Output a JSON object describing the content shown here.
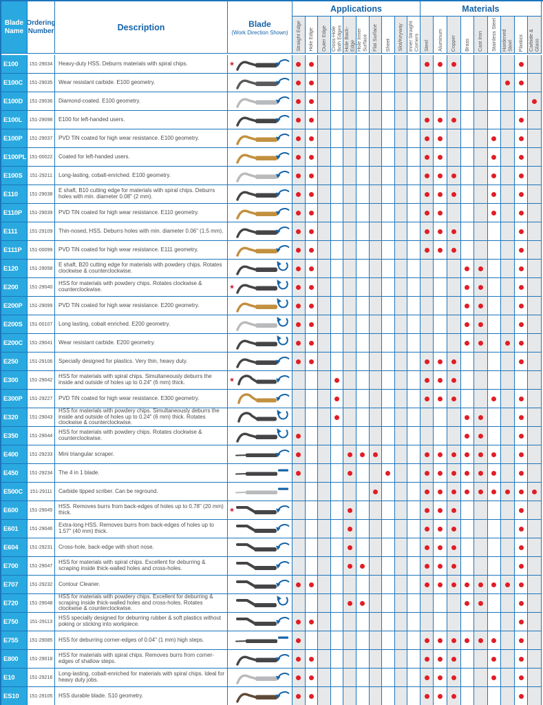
{
  "colors": {
    "header_cyan": "#29a9e0",
    "grid_blue": "#1b75bc",
    "title_blue": "#1464a8",
    "dot_red": "#e01e26",
    "column_shade_gray": "#e7e8e9",
    "body_text": "#4b4b4d",
    "star_red": "#cf2030",
    "blade_dark": "#454548",
    "blade_gold": "#c2903f",
    "blade_silver": "#b9babc",
    "blade_brown": "#5f4a38"
  },
  "icons": {
    "star": "★",
    "work_direction_arc": "curved arrow",
    "work_direction_rotation": "circular arrow (clockwise & counterclockwise)",
    "work_direction_dash": "straight stroke"
  },
  "table": {
    "headers": {
      "blade_name": "Blade Name",
      "ordering_number": "Ordering Number",
      "description": "Description",
      "blade_title": "Blade",
      "blade_subtitle": "(Work Direction Shown)",
      "applications_title": "Applications",
      "materials_title": "Materials",
      "application_columns": [
        "Straight Edge",
        "Hole Edge",
        "Outer Edge",
        "Cross-Hole Both Edges",
        "Hole Back-Edge",
        "Hole Inner Surface",
        "Flat Surface",
        "Sheet",
        "Slot/Keyway",
        "Inner Straight Corners"
      ],
      "material_columns": [
        "Steel",
        "Aluminum",
        "Copper",
        "Brass",
        "Cast Iron",
        "Stainless Steel",
        "Hardened Steel",
        "Plastics",
        "Carbide & Glass"
      ]
    },
    "rows": [
      {
        "name": "E100",
        "order": "151-29034",
        "desc": "Heavy-duty HSS. Deburrs materials with spiral chips.",
        "star": true,
        "shape": "curve",
        "blade_color": "#454548",
        "direction": "arc",
        "applications": [
          "Straight Edge",
          "Hole Edge"
        ],
        "materials": [
          "Steel",
          "Aluminum",
          "Copper",
          "Plastics"
        ]
      },
      {
        "name": "E100C",
        "order": "151-29035",
        "desc": "Wear resistant carbide. E100 geometry.",
        "star": false,
        "shape": "curve",
        "blade_color": "#5a5a5d",
        "direction": "arc",
        "applications": [
          "Straight Edge",
          "Hole Edge"
        ],
        "materials": [
          "Hardened Steel",
          "Plastics"
        ]
      },
      {
        "name": "E100D",
        "order": "151-29036",
        "desc": "Diamond-coated. E100 geometry.",
        "star": false,
        "shape": "curve",
        "blade_color": "#b9babc",
        "direction": "arc",
        "applications": [
          "Straight Edge",
          "Hole Edge"
        ],
        "materials": [
          "Carbide & Glass"
        ]
      },
      {
        "name": "E100L",
        "order": "151-29098",
        "desc": "E100 for left-handed users.",
        "star": false,
        "shape": "curve",
        "blade_color": "#454548",
        "direction": "arc",
        "applications": [
          "Straight Edge",
          "Hole Edge"
        ],
        "materials": [
          "Steel",
          "Aluminum",
          "Copper",
          "Plastics"
        ]
      },
      {
        "name": "E100P",
        "order": "151-29037",
        "desc": "PVD TiN coated for high wear resistance. E100 geometry.",
        "star": false,
        "shape": "curve",
        "blade_color": "#c2903f",
        "direction": "arc",
        "applications": [
          "Straight Edge",
          "Hole Edge"
        ],
        "materials": [
          "Steel",
          "Aluminum",
          "Stainless Steel",
          "Plastics"
        ]
      },
      {
        "name": "E100PL",
        "order": "151-00022",
        "desc": "Coated for left-handed users.",
        "star": false,
        "shape": "curve",
        "blade_color": "#c2903f",
        "direction": "arc",
        "applications": [
          "Straight Edge",
          "Hole Edge"
        ],
        "materials": [
          "Steel",
          "Aluminum",
          "Stainless Steel",
          "Plastics"
        ]
      },
      {
        "name": "E100S",
        "order": "151-29211",
        "desc": "Long-lasting, cobalt-enriched. E100 geometry.",
        "star": false,
        "shape": "curve",
        "blade_color": "#b9babc",
        "direction": "arc",
        "applications": [
          "Straight Edge",
          "Hole Edge"
        ],
        "materials": [
          "Steel",
          "Aluminum",
          "Copper",
          "Stainless Steel",
          "Plastics"
        ]
      },
      {
        "name": "E110",
        "order": "151-29038",
        "desc": "E shaft, B10 cutting edge for materials with spiral chips. Deburrs holes with min. diameter 0.08\" (2 mm).",
        "star": false,
        "shape": "curve",
        "blade_color": "#454548",
        "direction": "arc",
        "applications": [
          "Straight Edge",
          "Hole Edge"
        ],
        "materials": [
          "Steel",
          "Aluminum",
          "Copper",
          "Stainless Steel",
          "Plastics"
        ]
      },
      {
        "name": "E110P",
        "order": "151-29039",
        "desc": "PVD TiN coated for high wear resistance. E110 geometry.",
        "star": false,
        "shape": "curve",
        "blade_color": "#c2903f",
        "direction": "arc",
        "applications": [
          "Straight Edge",
          "Hole Edge"
        ],
        "materials": [
          "Steel",
          "Aluminum",
          "Stainless Steel",
          "Plastics"
        ]
      },
      {
        "name": "E111",
        "order": "151-29109",
        "desc": "Thin-nosed, HSS. Deburrs holes with min. diameter 0.06\" (1.5 mm).",
        "star": false,
        "shape": "curve",
        "blade_color": "#454548",
        "direction": "arc",
        "applications": [
          "Straight Edge",
          "Hole Edge"
        ],
        "materials": [
          "Steel",
          "Aluminum",
          "Copper",
          "Plastics"
        ]
      },
      {
        "name": "E111P",
        "order": "151-00099",
        "desc": "PVD TiN coated for high wear resistance. E111 geometry.",
        "star": false,
        "shape": "curve",
        "blade_color": "#c2903f",
        "direction": "arc",
        "applications": [
          "Straight Edge",
          "Hole Edge"
        ],
        "materials": [
          "Steel",
          "Aluminum",
          "Copper",
          "Plastics"
        ]
      },
      {
        "name": "E120",
        "order": "151-29058",
        "desc": "E shaft, B20 cutting edge for materials with powdery chips. Rotates clockwise & counterclockwise.",
        "star": false,
        "shape": "curve",
        "blade_color": "#454548",
        "direction": "circle",
        "applications": [
          "Straight Edge",
          "Hole Edge"
        ],
        "materials": [
          "Brass",
          "Cast Iron",
          "Plastics"
        ]
      },
      {
        "name": "E200",
        "order": "151-29040",
        "desc": "HSS for materials with powdery chips. Rotates clockwise & counterclockwise.",
        "star": true,
        "shape": "curve",
        "blade_color": "#454548",
        "direction": "circle",
        "applications": [
          "Straight Edge",
          "Hole Edge"
        ],
        "materials": [
          "Brass",
          "Cast Iron",
          "Plastics"
        ]
      },
      {
        "name": "E200P",
        "order": "151-29099",
        "desc": "PVD TiN coated for high wear resistance. E200 geometry.",
        "star": false,
        "shape": "curve",
        "blade_color": "#c2903f",
        "direction": "circle",
        "applications": [
          "Straight Edge",
          "Hole Edge"
        ],
        "materials": [
          "Brass",
          "Cast Iron",
          "Plastics"
        ]
      },
      {
        "name": "E200S",
        "order": "151-00107",
        "desc": "Long lasting, cobalt enriched. E200 geometry.",
        "star": false,
        "shape": "curve",
        "blade_color": "#b9babc",
        "direction": "circle",
        "applications": [
          "Straight Edge",
          "Hole Edge"
        ],
        "materials": [
          "Brass",
          "Cast Iron",
          "Plastics"
        ]
      },
      {
        "name": "E200C",
        "order": "151-29041",
        "desc": "Wear resistant carbide. E200 geometry.",
        "star": false,
        "shape": "curve",
        "blade_color": "#454548",
        "direction": "circle",
        "applications": [
          "Straight Edge",
          "Hole Edge"
        ],
        "materials": [
          "Brass",
          "Cast Iron",
          "Hardened Steel",
          "Plastics"
        ]
      },
      {
        "name": "E250",
        "order": "151-29106",
        "desc": "Specially designed for plastics. Very thin, heavy duty.",
        "star": false,
        "shape": "curve",
        "blade_color": "#454548",
        "direction": "arc",
        "applications": [
          "Straight Edge",
          "Hole Edge"
        ],
        "materials": [
          "Steel",
          "Aluminum",
          "Copper",
          "Plastics"
        ]
      },
      {
        "name": "E300",
        "order": "151-29042",
        "desc": "HSS for materials with spiral chips. Simultaneously deburrs the inside and outside of holes up to 0.24\" (6 mm) thick.",
        "star": true,
        "shape": "hump",
        "blade_color": "#454548",
        "direction": "arc",
        "applications": [
          "Cross-Hole Both Edges"
        ],
        "materials": [
          "Steel",
          "Aluminum",
          "Copper"
        ]
      },
      {
        "name": "E300P",
        "order": "151-29227",
        "desc": "PVD TiN coated for high wear resistance. E300 geometry.",
        "star": false,
        "shape": "hump",
        "blade_color": "#c2903f",
        "direction": "arc",
        "applications": [
          "Cross-Hole Both Edges"
        ],
        "materials": [
          "Steel",
          "Aluminum",
          "Copper",
          "Stainless Steel",
          "Plastics"
        ]
      },
      {
        "name": "E320",
        "order": "151-29043",
        "desc": "HSS for materials with powdery chips. Simultaneously deburrs the inside and outside of holes up to 0.24\" (6 mm) thick. Rotates clockwise & counterclockwise.",
        "star": false,
        "shape": "hump",
        "blade_color": "#454548",
        "direction": "circle",
        "applications": [
          "Cross-Hole Both Edges"
        ],
        "materials": [
          "Brass",
          "Cast Iron",
          "Plastics"
        ]
      },
      {
        "name": "E350",
        "order": "151-29044",
        "desc": "HSS for materials with powdery chips. Rotates clockwise & counterclockwise.",
        "star": false,
        "shape": "curve",
        "blade_color": "#454548",
        "direction": "circle",
        "applications": [
          "Straight Edge"
        ],
        "materials": [
          "Brass",
          "Cast Iron",
          "Plastics"
        ]
      },
      {
        "name": "E400",
        "order": "151-29233",
        "desc": "Mini triangular scraper.",
        "star": false,
        "shape": "straight",
        "blade_color": "#454548",
        "direction": "arc",
        "applications": [
          "Straight Edge",
          "Hole Back-Edge",
          "Hole Inner Surface",
          "Flat Surface"
        ],
        "materials": [
          "Steel",
          "Aluminum",
          "Copper",
          "Brass",
          "Cast Iron",
          "Stainless Steel",
          "Plastics"
        ]
      },
      {
        "name": "E450",
        "order": "151-29234",
        "desc": "The 4 in 1 blade.",
        "star": false,
        "shape": "straight",
        "blade_color": "#454548",
        "direction": "dash",
        "applications": [
          "Straight Edge",
          "Hole Back-Edge",
          "Sheet"
        ],
        "materials": [
          "Steel",
          "Aluminum",
          "Copper",
          "Brass",
          "Cast Iron",
          "Stainless Steel",
          "Plastics"
        ]
      },
      {
        "name": "E500C",
        "order": "151-29111",
        "desc": "Carbide tipped scriber. Can be reground.",
        "star": false,
        "shape": "straight",
        "blade_color": "#b9babc",
        "direction": "dash",
        "applications": [
          "Flat Surface"
        ],
        "materials": [
          "Steel",
          "Aluminum",
          "Copper",
          "Brass",
          "Cast Iron",
          "Stainless Steel",
          "Hardened Steel",
          "Plastics",
          "Carbide & Glass"
        ]
      },
      {
        "name": "E600",
        "order": "151-29045",
        "desc": "HSS. Removes burrs from back-edges of holes up to 0.78\" (20 mm) thick.",
        "star": true,
        "shape": "bend",
        "blade_color": "#454548",
        "direction": "arc",
        "applications": [
          "Hole Back-Edge"
        ],
        "materials": [
          "Steel",
          "Aluminum",
          "Copper",
          "Plastics"
        ]
      },
      {
        "name": "E601",
        "order": "151-29046",
        "desc": "Extra-long HSS. Removes burrs from back-edges of holes up to 1.57\" (40 mm) thick.",
        "star": false,
        "shape": "bend",
        "blade_color": "#454548",
        "direction": "arc",
        "applications": [
          "Hole Back-Edge"
        ],
        "materials": [
          "Steel",
          "Aluminum",
          "Copper",
          "Plastics"
        ]
      },
      {
        "name": "E604",
        "order": "151-29231",
        "desc": "Cross-hole, back-edge with short nose.",
        "star": false,
        "shape": "bend",
        "blade_color": "#454548",
        "direction": "arc",
        "applications": [
          "Hole Back-Edge"
        ],
        "materials": [
          "Steel",
          "Aluminum",
          "Copper",
          "Plastics"
        ]
      },
      {
        "name": "E700",
        "order": "151-29047",
        "desc": "HSS for materials with spiral chips. Excellent for deburring & scraping inside thick-walled holes and cross-holes.",
        "star": false,
        "shape": "bend",
        "blade_color": "#454548",
        "direction": "arc",
        "applications": [
          "Hole Back-Edge",
          "Hole Inner Surface"
        ],
        "materials": [
          "Steel",
          "Aluminum",
          "Copper",
          "Plastics"
        ]
      },
      {
        "name": "E707",
        "order": "151-29232",
        "desc": "Contour Cleaner.",
        "star": false,
        "shape": "bend",
        "blade_color": "#454548",
        "direction": "arc",
        "applications": [
          "Straight Edge",
          "Hole Edge"
        ],
        "materials": [
          "Steel",
          "Aluminum",
          "Copper",
          "Brass",
          "Cast Iron",
          "Stainless Steel",
          "Hardened Steel",
          "Plastics"
        ]
      },
      {
        "name": "E720",
        "order": "151-29048",
        "desc": "HSS for materials with powdery chips. Excellent for deburring & scraping inside thick-walled holes and cross-holes. Rotates clockwise & counterclockwise.",
        "star": false,
        "shape": "bend",
        "blade_color": "#454548",
        "direction": "circle",
        "applications": [
          "Hole Back-Edge",
          "Hole Inner Surface"
        ],
        "materials": [
          "Brass",
          "Cast Iron",
          "Plastics"
        ]
      },
      {
        "name": "E750",
        "order": "151-29113",
        "desc": "HSS specially designed for deburring rubber & soft plastics without poking or sticking into workpiece.",
        "star": false,
        "shape": "bend",
        "blade_color": "#454548",
        "direction": "arc",
        "applications": [
          "Straight Edge",
          "Hole Edge"
        ],
        "materials": [
          "Plastics"
        ]
      },
      {
        "name": "E755",
        "order": "151-29085",
        "desc": "HSS for deburring corner-edges of 0.04\" (1 mm) high steps.",
        "star": false,
        "shape": "straight",
        "blade_color": "#454548",
        "direction": "dash",
        "applications": [
          "Straight Edge"
        ],
        "materials": [
          "Steel",
          "Aluminum",
          "Copper",
          "Brass",
          "Cast Iron",
          "Stainless Steel",
          "Plastics"
        ]
      },
      {
        "name": "E800",
        "order": "151-29018",
        "desc": "HSS for materials with spiral chips. Removes burrs from corner-edges of shallow steps.",
        "star": false,
        "shape": "curve",
        "blade_color": "#454548",
        "direction": "arc",
        "applications": [
          "Straight Edge",
          "Hole Edge"
        ],
        "materials": [
          "Steel",
          "Aluminum",
          "Copper",
          "Stainless Steel",
          "Plastics"
        ]
      },
      {
        "name": "E10",
        "order": "151-29216",
        "desc": "Long-lasting, cobalt-enriched for materials with spiral chips. Ideal for heavy duty jobs.",
        "star": false,
        "shape": "curve",
        "blade_color": "#b9babc",
        "direction": "arc",
        "applications": [
          "Straight Edge",
          "Hole Edge"
        ],
        "materials": [
          "Steel",
          "Aluminum",
          "Copper",
          "Stainless Steel",
          "Plastics"
        ]
      },
      {
        "name": "ES10",
        "order": "151-29105",
        "desc": "HSS durable blade. S10 geometry.",
        "star": false,
        "shape": "curve",
        "blade_color": "#5f4a38",
        "direction": "arc",
        "applications": [
          "Straight Edge",
          "Hole Edge"
        ],
        "materials": [
          "Steel",
          "Aluminum",
          "Copper",
          "Plastics"
        ]
      }
    ]
  }
}
